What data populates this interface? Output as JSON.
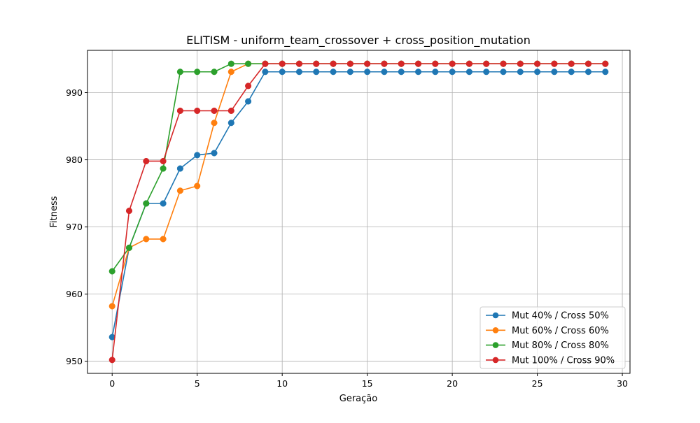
{
  "chart_data": {
    "type": "line",
    "title": "ELITISM - uniform_team_crossover + cross_position_mutation",
    "xlabel": "Geração",
    "ylabel": "Fitness",
    "xlim": [
      -1.45,
      30.45
    ],
    "ylim": [
      948.2,
      996.3
    ],
    "xticks": [
      0,
      5,
      10,
      15,
      20,
      25,
      30
    ],
    "yticks": [
      950,
      960,
      970,
      980,
      990
    ],
    "grid": true,
    "legend_position": "lower right",
    "series": [
      {
        "name": "Mut 40% / Cross 50%",
        "color": "#1f77b4",
        "x": [
          0,
          1,
          2,
          3,
          4,
          5,
          6,
          7,
          8,
          9,
          10,
          11,
          12,
          13,
          14,
          15,
          16,
          17,
          18,
          19,
          20,
          21,
          22,
          23,
          24,
          25,
          26,
          27,
          28,
          29
        ],
        "values": [
          953.6,
          966.9,
          973.5,
          973.5,
          978.7,
          980.7,
          981.0,
          985.5,
          988.7,
          993.1,
          993.1,
          993.1,
          993.1,
          993.1,
          993.1,
          993.1,
          993.1,
          993.1,
          993.1,
          993.1,
          993.1,
          993.1,
          993.1,
          993.1,
          993.1,
          993.1,
          993.1,
          993.1,
          993.1,
          993.1
        ]
      },
      {
        "name": "Mut 60% / Cross 60%",
        "color": "#ff7f0e",
        "x": [
          0,
          1,
          2,
          3,
          4,
          5,
          6,
          7,
          8,
          9,
          10,
          11,
          12,
          13,
          14,
          15,
          16,
          17,
          18,
          19,
          20,
          21,
          22,
          23,
          24,
          25,
          26,
          27,
          28,
          29
        ],
        "values": [
          958.2,
          966.9,
          968.2,
          968.2,
          975.4,
          976.1,
          985.5,
          993.1,
          994.3,
          994.3,
          994.3,
          994.3,
          994.3,
          994.3,
          994.3,
          994.3,
          994.3,
          994.3,
          994.3,
          994.3,
          994.3,
          994.3,
          994.3,
          994.3,
          994.3,
          994.3,
          994.3,
          994.3,
          994.3,
          994.3
        ]
      },
      {
        "name": "Mut 80% / Cross 80%",
        "color": "#2ca02c",
        "x": [
          0,
          1,
          2,
          3,
          4,
          5,
          6,
          7,
          8,
          9,
          10,
          11,
          12,
          13,
          14,
          15,
          16,
          17,
          18,
          19,
          20,
          21,
          22,
          23,
          24,
          25,
          26,
          27,
          28,
          29
        ],
        "values": [
          963.4,
          966.9,
          973.5,
          978.7,
          993.1,
          993.1,
          993.1,
          994.3,
          994.3,
          994.3,
          994.3,
          994.3,
          994.3,
          994.3,
          994.3,
          994.3,
          994.3,
          994.3,
          994.3,
          994.3,
          994.3,
          994.3,
          994.3,
          994.3,
          994.3,
          994.3,
          994.3,
          994.3,
          994.3,
          994.3
        ]
      },
      {
        "name": "Mut 100% / Cross 90%",
        "color": "#d62728",
        "x": [
          0,
          1,
          2,
          3,
          4,
          5,
          6,
          7,
          8,
          9,
          10,
          11,
          12,
          13,
          14,
          15,
          16,
          17,
          18,
          19,
          20,
          21,
          22,
          23,
          24,
          25,
          26,
          27,
          28,
          29
        ],
        "values": [
          950.2,
          972.4,
          979.8,
          979.8,
          987.3,
          987.3,
          987.3,
          987.3,
          991.0,
          994.3,
          994.3,
          994.3,
          994.3,
          994.3,
          994.3,
          994.3,
          994.3,
          994.3,
          994.3,
          994.3,
          994.3,
          994.3,
          994.3,
          994.3,
          994.3,
          994.3,
          994.3,
          994.3,
          994.3,
          994.3
        ]
      }
    ]
  }
}
